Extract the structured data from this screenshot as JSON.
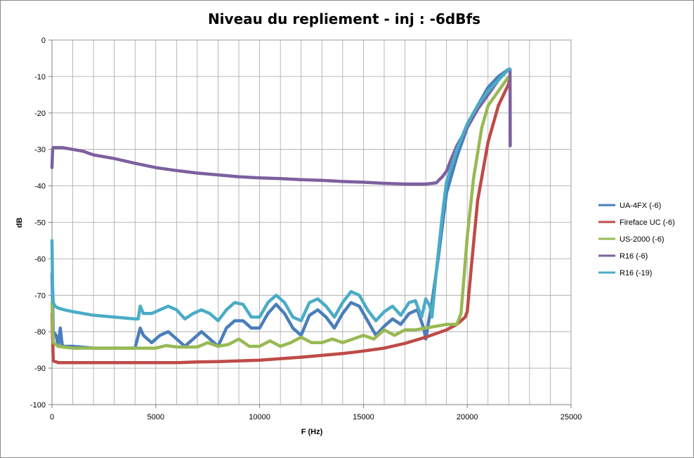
{
  "chart_data": {
    "type": "line",
    "title": "Niveau du repliement - inj : -6dBfs",
    "xlabel": "F (Hz)",
    "ylabel": "dB",
    "xlim": [
      0,
      25000
    ],
    "ylim": [
      -100,
      0
    ],
    "xticks": [
      0,
      5000,
      10000,
      15000,
      20000,
      25000
    ],
    "xtick_labels": [
      "0",
      "5000",
      "10000",
      "15000",
      "20000",
      "25000"
    ],
    "yticks": [
      0,
      -10,
      -20,
      -30,
      -40,
      -50,
      -60,
      -70,
      -80,
      -90,
      -100
    ],
    "ytick_labels": [
      "0",
      "-10",
      "-20",
      "-30",
      "-40",
      "-50",
      "-60",
      "-70",
      "-80",
      "-90",
      "-100"
    ],
    "grid": true,
    "legend_position": "right",
    "series": [
      {
        "name": "UA-4FX (-6)",
        "color": "#4a7ebb",
        "x": [
          0,
          60,
          200,
          300,
          400,
          500,
          600,
          1000,
          2000,
          3000,
          4000,
          4250,
          4400,
          4800,
          5200,
          5600,
          6000,
          6400,
          6800,
          7200,
          7600,
          8000,
          8400,
          8800,
          9200,
          9600,
          10000,
          10400,
          10800,
          11200,
          11600,
          12000,
          12400,
          12800,
          13200,
          13600,
          14000,
          14400,
          14800,
          15200,
          15600,
          16000,
          16400,
          16800,
          17200,
          17600,
          17900,
          18000,
          18300,
          18600,
          19000,
          19500,
          20000,
          20500,
          21000,
          21500,
          22000,
          22050
        ],
        "y": [
          -64,
          -80,
          -81,
          -84,
          -79,
          -84,
          -84,
          -84,
          -84.5,
          -84.5,
          -84.5,
          -79,
          -81,
          -83,
          -81,
          -80,
          -82,
          -84,
          -82,
          -80,
          -82,
          -84,
          -79,
          -77,
          -77,
          -79,
          -79,
          -75,
          -72.5,
          -75,
          -79,
          -81,
          -75.5,
          -74,
          -76,
          -79,
          -75,
          -72,
          -73,
          -77,
          -81,
          -78.5,
          -76.5,
          -78,
          -75,
          -74,
          -79,
          -82,
          -72,
          -60,
          -42,
          -32,
          -24,
          -18,
          -13,
          -10,
          -8,
          -8
        ]
      },
      {
        "name": "Fireface UC (-6)",
        "color": "#be4b48",
        "x": [
          0,
          60,
          300,
          1000,
          2000,
          3000,
          4000,
          5000,
          6000,
          7000,
          8000,
          9000,
          10000,
          11000,
          12000,
          13000,
          14000,
          15000,
          16000,
          17000,
          18000,
          19000,
          19500,
          19900,
          20000,
          20200,
          20500,
          21000,
          21500,
          22000,
          22050
        ],
        "y": [
          -75,
          -88,
          -88.5,
          -88.5,
          -88.5,
          -88.5,
          -88.5,
          -88.5,
          -88.5,
          -88.3,
          -88.2,
          -88,
          -87.8,
          -87.4,
          -87,
          -86.5,
          -86,
          -85.3,
          -84.5,
          -83.2,
          -81.5,
          -79.5,
          -78,
          -76,
          -74.5,
          -62,
          -44,
          -28,
          -18,
          -12,
          -10
        ]
      },
      {
        "name": "US-2000 (-6)",
        "color": "#98b954",
        "x": [
          0,
          60,
          300,
          1000,
          2000,
          3000,
          4000,
          5000,
          5500,
          6000,
          7000,
          7500,
          8000,
          8500,
          9000,
          9500,
          10000,
          10500,
          11000,
          11500,
          12000,
          12500,
          13000,
          13500,
          14000,
          14500,
          15000,
          15500,
          16000,
          16500,
          17000,
          17500,
          18000,
          18500,
          19000,
          19500,
          19700,
          19800,
          20000,
          20300,
          20700,
          21000,
          21500,
          22000,
          22050
        ],
        "y": [
          -72,
          -83,
          -84,
          -84.5,
          -84.5,
          -84.5,
          -84.5,
          -84.5,
          -83.8,
          -84.2,
          -84.2,
          -83,
          -84,
          -83.5,
          -82,
          -84,
          -84,
          -82.5,
          -84,
          -83,
          -81.5,
          -83,
          -83,
          -82,
          -83,
          -82,
          -81,
          -82,
          -79.5,
          -81,
          -79.5,
          -79.5,
          -79,
          -78.5,
          -78,
          -78,
          -75,
          -68,
          -54,
          -38,
          -24,
          -18,
          -14,
          -10,
          -10
        ]
      },
      {
        "name": "R16 (-6)",
        "color": "#7d60a0",
        "x": [
          0,
          30,
          60,
          200,
          500,
          1000,
          1500,
          2000,
          3000,
          4000,
          5000,
          6000,
          7000,
          8000,
          9000,
          10000,
          11000,
          12000,
          13000,
          14000,
          15000,
          16000,
          17000,
          18000,
          18500,
          18800,
          19000,
          19200,
          19500,
          20000,
          20500,
          21000,
          21500,
          22000,
          22060,
          22070
        ],
        "y": [
          -35,
          -30,
          -29.5,
          -29.5,
          -29.5,
          -30,
          -30.5,
          -31.5,
          -32.5,
          -33.8,
          -35,
          -35.8,
          -36.5,
          -37,
          -37.5,
          -37.8,
          -38,
          -38.3,
          -38.5,
          -38.8,
          -39,
          -39.3,
          -39.5,
          -39.5,
          -39.2,
          -37.5,
          -36,
          -33,
          -29,
          -24,
          -19,
          -15,
          -11,
          -8,
          -8,
          -29
        ]
      },
      {
        "name": "R16 (-19)",
        "color": "#4bacc6",
        "x": [
          0,
          30,
          60,
          150,
          300,
          600,
          1000,
          2000,
          3000,
          4000,
          4150,
          4250,
          4400,
          4800,
          5200,
          5600,
          6000,
          6400,
          6800,
          7200,
          7600,
          8000,
          8400,
          8800,
          9200,
          9600,
          10000,
          10400,
          10800,
          11200,
          11600,
          12000,
          12400,
          12800,
          13200,
          13600,
          14000,
          14400,
          14800,
          15200,
          15600,
          16000,
          16400,
          16800,
          17200,
          17500,
          17800,
          18000,
          18200,
          18300,
          18500,
          18800,
          19000,
          19500,
          20000,
          20500,
          21000,
          21500,
          22000,
          22050
        ],
        "y": [
          -55,
          -68,
          -72,
          -73,
          -73.5,
          -74,
          -74.5,
          -75.5,
          -76,
          -76.5,
          -76.5,
          -73,
          -75,
          -75,
          -74,
          -73,
          -74,
          -76.5,
          -75,
          -74,
          -75,
          -77,
          -74,
          -72,
          -72.5,
          -76,
          -76,
          -72,
          -70,
          -72,
          -76,
          -77,
          -72,
          -71,
          -73,
          -76,
          -72,
          -69,
          -70,
          -74,
          -77,
          -74.5,
          -73,
          -75.5,
          -72,
          -71.5,
          -76,
          -71,
          -73,
          -76,
          -64,
          -48,
          -39,
          -30,
          -23,
          -18,
          -14,
          -11,
          -8,
          -8
        ]
      }
    ]
  }
}
